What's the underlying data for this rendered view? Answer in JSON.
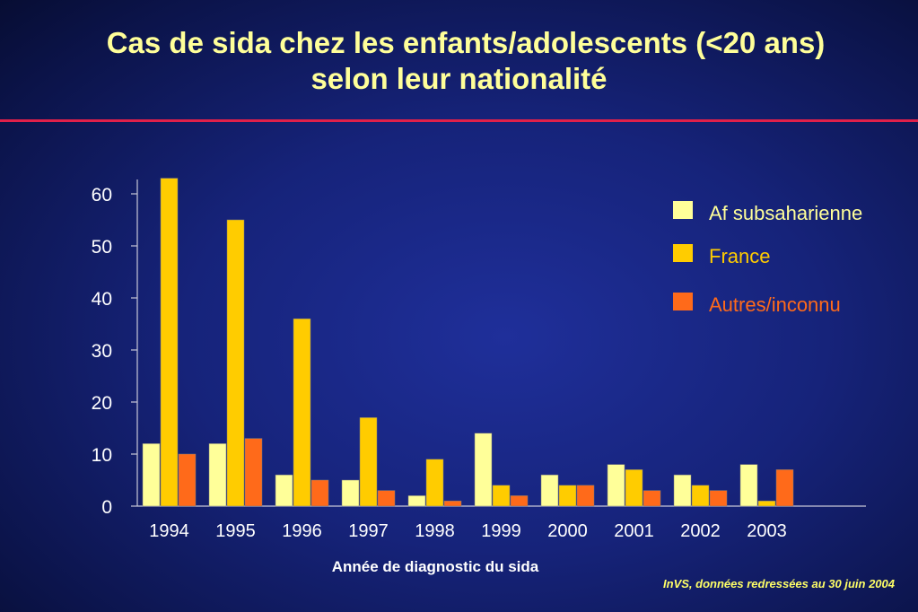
{
  "title_line1": "Cas de sida chez les enfants/adolescents (<20 ans)",
  "title_line2": "selon leur nationalité",
  "source": "InVS, données redressées au 30 juin 2004",
  "colors": {
    "title": "#ffff99",
    "rule": "#e0204a",
    "series": [
      "#ffff99",
      "#ffcc00",
      "#ff6a1a"
    ]
  },
  "chart_data": {
    "type": "bar",
    "categories": [
      "1994",
      "1995",
      "1996",
      "1997",
      "1998",
      "1999",
      "2000",
      "2001",
      "2002",
      "2003"
    ],
    "series": [
      {
        "name": "Af subsaharienne",
        "values": [
          12,
          12,
          6,
          5,
          2,
          14,
          6,
          8,
          6,
          8
        ]
      },
      {
        "name": "France",
        "values": [
          63,
          55,
          36,
          17,
          9,
          4,
          4,
          7,
          4,
          1
        ]
      },
      {
        "name": "Autres/inconnu",
        "values": [
          10,
          13,
          5,
          3,
          1,
          2,
          4,
          3,
          3,
          7
        ]
      }
    ],
    "xlabel": "Année de diagnostic du sida",
    "ylabel": "",
    "ylim": [
      0,
      60
    ],
    "yticks": [
      "0",
      "10",
      "20",
      "30",
      "40",
      "50",
      "60"
    ],
    "legend": "top-right",
    "grid": false
  }
}
